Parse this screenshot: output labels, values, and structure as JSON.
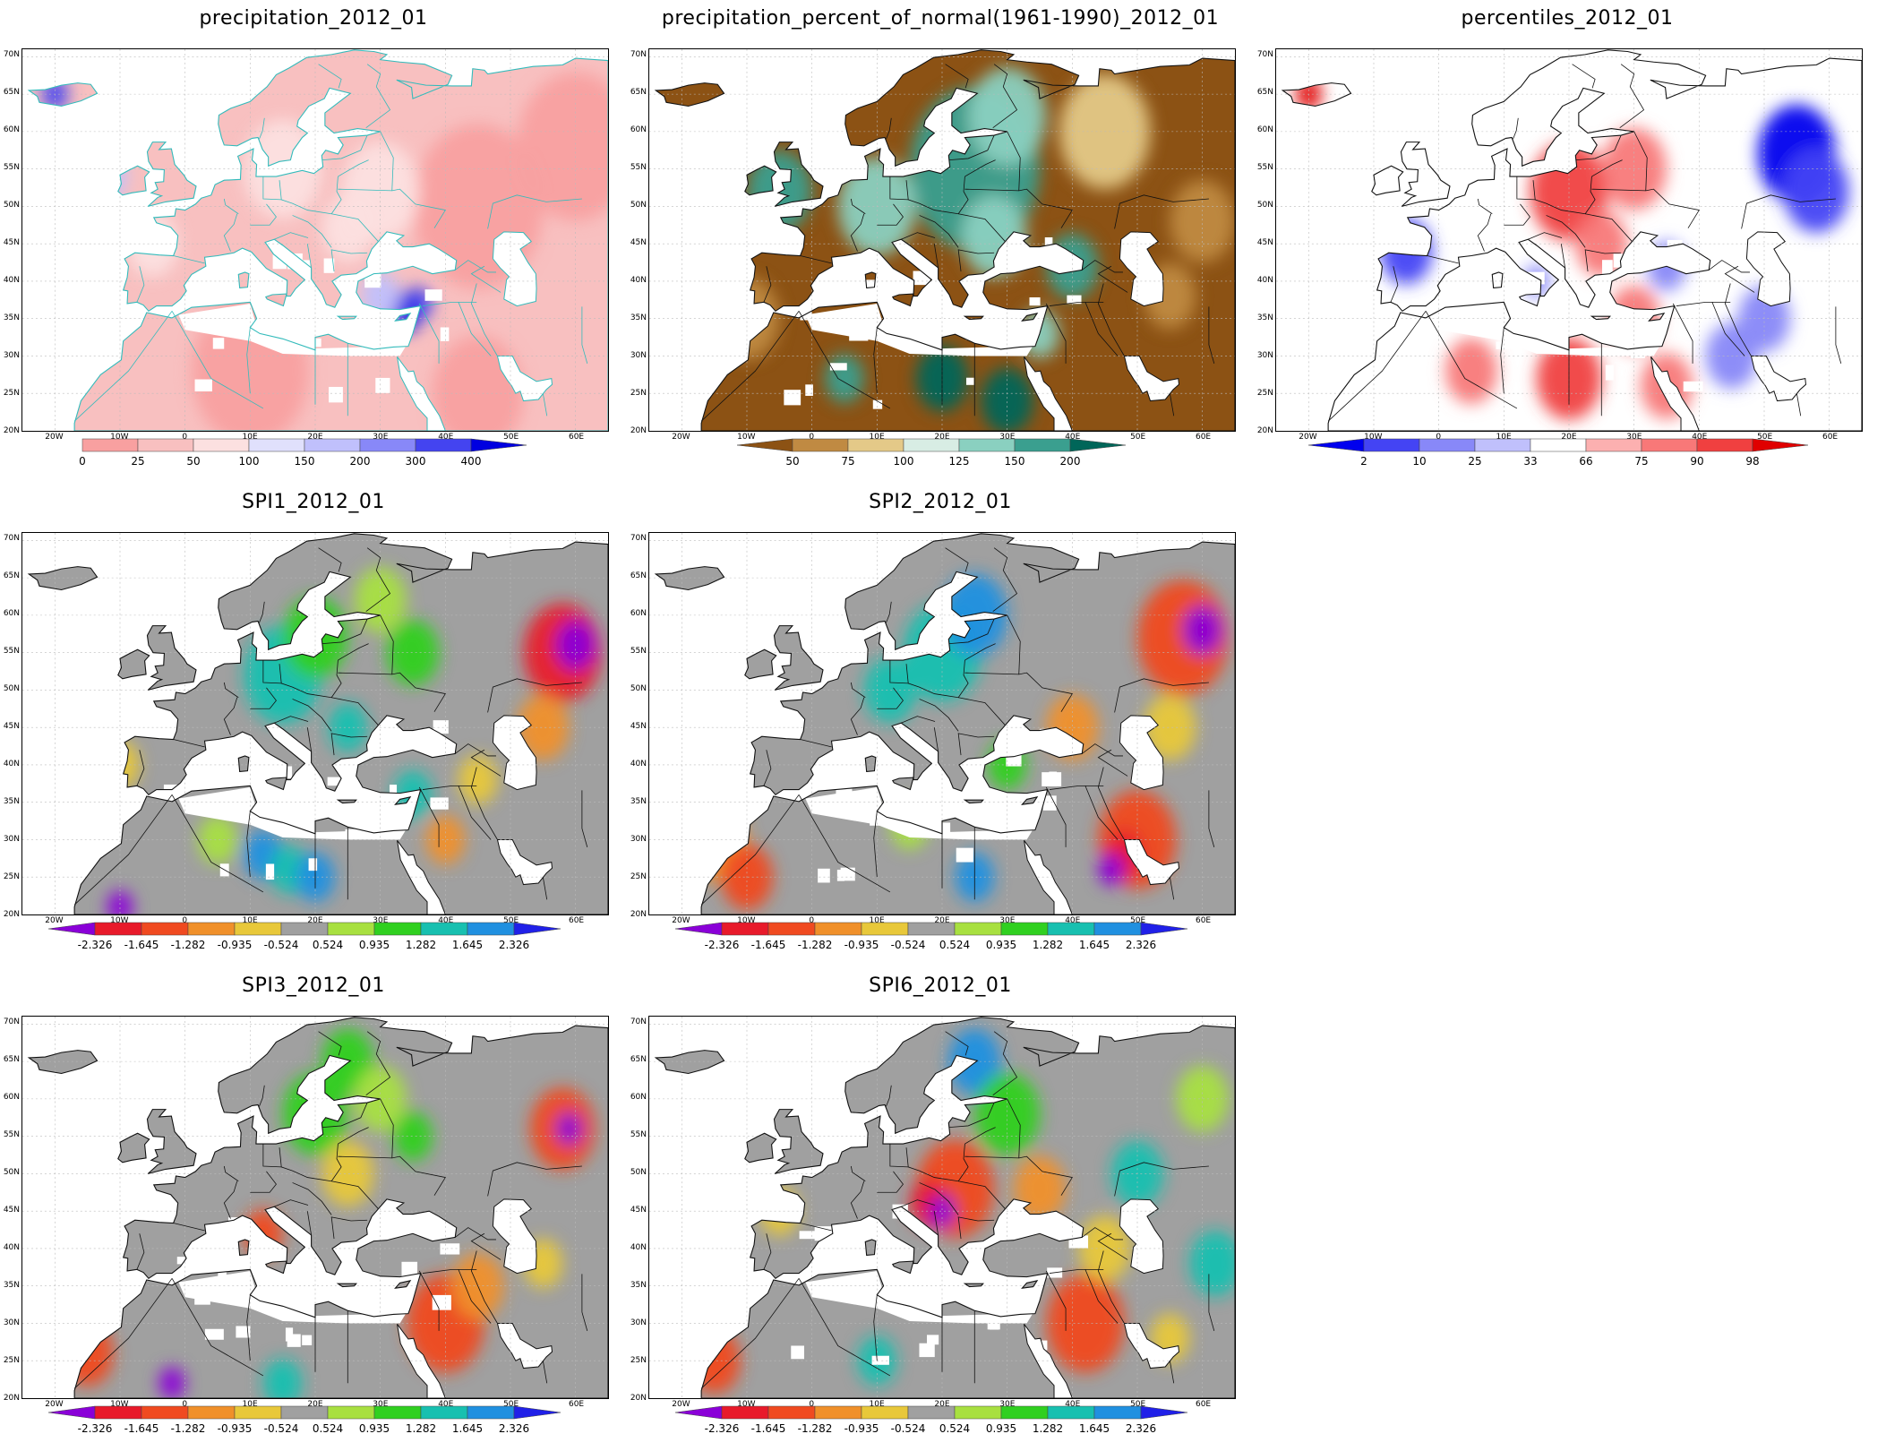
{
  "page": {
    "background": "#ffffff"
  },
  "axes": {
    "lat_labels": [
      "70N",
      "65N",
      "60N",
      "55N",
      "50N",
      "45N",
      "40N",
      "35N",
      "30N",
      "25N",
      "20N"
    ],
    "lon_labels": [
      "20W",
      "10W",
      "0",
      "10E",
      "20E",
      "30E",
      "40E",
      "50E",
      "60E"
    ]
  },
  "panels": [
    {
      "id": "precip",
      "title": "precipitation_2012_01",
      "coast_color": "#33bbbb",
      "legend": {
        "labels": [
          "0",
          "25",
          "50",
          "100",
          "150",
          "200",
          "300",
          "400"
        ],
        "colors": [
          "#f8a0a0",
          "#f8c0c0",
          "#fce0e0",
          "#e0e0fc",
          "#c0c0fc",
          "#8888f8",
          "#4444f0",
          "#0000e0"
        ],
        "arrow_left": false
      }
    },
    {
      "id": "pct",
      "title": "precipitation_percent_of_normal(1961-1990)_2012_01",
      "coast_color": "#111111",
      "legend": {
        "labels": [
          "50",
          "75",
          "100",
          "125",
          "150",
          "200"
        ],
        "colors": [
          "#8c5214",
          "#c08a42",
          "#e4c988",
          "#d8ede4",
          "#8ad0c0",
          "#3a9f8f",
          "#006659"
        ],
        "arrow_left": true
      }
    },
    {
      "id": "perc",
      "title": "percentiles_2012_01",
      "coast_color": "#111111",
      "legend": {
        "labels": [
          "2",
          "10",
          "25",
          "33",
          "66",
          "75",
          "90",
          "98"
        ],
        "colors": [
          "#0000ee",
          "#4444f4",
          "#8888f8",
          "#c0c0fc",
          "#ffffff",
          "#fcb0b0",
          "#f87878",
          "#f04040",
          "#e00000"
        ],
        "arrow_left": true
      }
    },
    {
      "id": "spi1",
      "title": "SPI1_2012_01",
      "coast_color": "#111111",
      "legend": {
        "labels": [
          "-2.326",
          "-1.645",
          "-1.282",
          "-0.935",
          "-0.524",
          "0.524",
          "0.935",
          "1.282",
          "1.645",
          "2.326"
        ],
        "colors": [
          "#8a00d8",
          "#e81a2a",
          "#f04a20",
          "#f0902a",
          "#e8c83a",
          "#a0a0a0",
          "#a8e040",
          "#30d020",
          "#18c0b0",
          "#2090e0",
          "#2020e8"
        ],
        "arrow_left": true
      }
    },
    {
      "id": "spi2",
      "title": "SPI2_2012_01",
      "coast_color": "#111111",
      "legend": {
        "labels": [
          "-2.326",
          "-1.645",
          "-1.282",
          "-0.935",
          "-0.524",
          "0.524",
          "0.935",
          "1.282",
          "1.645",
          "2.326"
        ],
        "colors": [
          "#8a00d8",
          "#e81a2a",
          "#f04a20",
          "#f0902a",
          "#e8c83a",
          "#a0a0a0",
          "#a8e040",
          "#30d020",
          "#18c0b0",
          "#2090e0",
          "#2020e8"
        ],
        "arrow_left": true
      }
    },
    {
      "id": "spi3",
      "title": "SPI3_2012_01",
      "coast_color": "#111111",
      "legend": {
        "labels": [
          "-2.326",
          "-1.645",
          "-1.282",
          "-0.935",
          "-0.524",
          "0.524",
          "0.935",
          "1.282",
          "1.645",
          "2.326"
        ],
        "colors": [
          "#8a00d8",
          "#e81a2a",
          "#f04a20",
          "#f0902a",
          "#e8c83a",
          "#a0a0a0",
          "#a8e040",
          "#30d020",
          "#18c0b0",
          "#2090e0",
          "#2020e8"
        ],
        "arrow_left": true
      }
    },
    {
      "id": "spi6",
      "title": "SPI6_2012_01",
      "coast_color": "#111111",
      "legend": {
        "labels": [
          "-2.326",
          "-1.645",
          "-1.282",
          "-0.935",
          "-0.524",
          "0.524",
          "0.935",
          "1.282",
          "1.645",
          "2.326"
        ],
        "colors": [
          "#8a00d8",
          "#e81a2a",
          "#f04a20",
          "#f0902a",
          "#e8c83a",
          "#a0a0a0",
          "#a8e040",
          "#30d020",
          "#18c0b0",
          "#2090e0",
          "#2020e8"
        ],
        "arrow_left": true
      }
    }
  ]
}
